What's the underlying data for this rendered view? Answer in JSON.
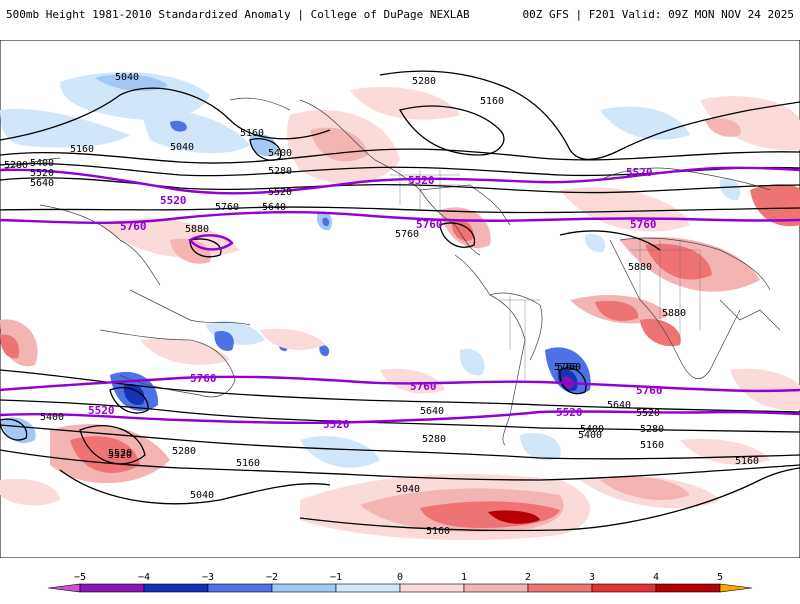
{
  "header": {
    "title": "500mb Height 1981-2010 Standardized Anomaly | College of DuPage NEXLAB",
    "run": "00Z GFS | F201 Valid: 09Z MON NOV 24 2025"
  },
  "colors": {
    "neg5": "#d050d0",
    "neg4": "#8a14b4",
    "neg3": "#1432b4",
    "neg2": "#4c72e6",
    "neg1": "#a4c8f4",
    "neg0": "#d2e6fa",
    "pos0": "#fbdada",
    "pos1": "#f5b4b4",
    "pos2": "#ee7474",
    "pos3": "#e23232",
    "pos4": "#b40000",
    "pos5": "#ffa500",
    "highlight_contour": "#9400d3"
  },
  "contours": {
    "thick_5520": "5520",
    "thick_5760": "5760",
    "labels": [
      "5040",
      "5280",
      "5160",
      "5280",
      "5400",
      "5520",
      "5640",
      "5160",
      "5040",
      "5280",
      "5160",
      "5400",
      "5520",
      "5760",
      "5640",
      "5880",
      "5760",
      "5880",
      "5880",
      "5760",
      "5640",
      "5400",
      "5160",
      "5280",
      "5520",
      "5400",
      "5280",
      "5160",
      "5040",
      "5040",
      "5160",
      "5520",
      "5760",
      "5640",
      "5520",
      "5400",
      "5280",
      "5160"
    ]
  },
  "colorbar": {
    "ticks": [
      "−5",
      "−4",
      "−3",
      "−2",
      "−1",
      "0",
      "1",
      "2",
      "3",
      "4",
      "5"
    ]
  }
}
